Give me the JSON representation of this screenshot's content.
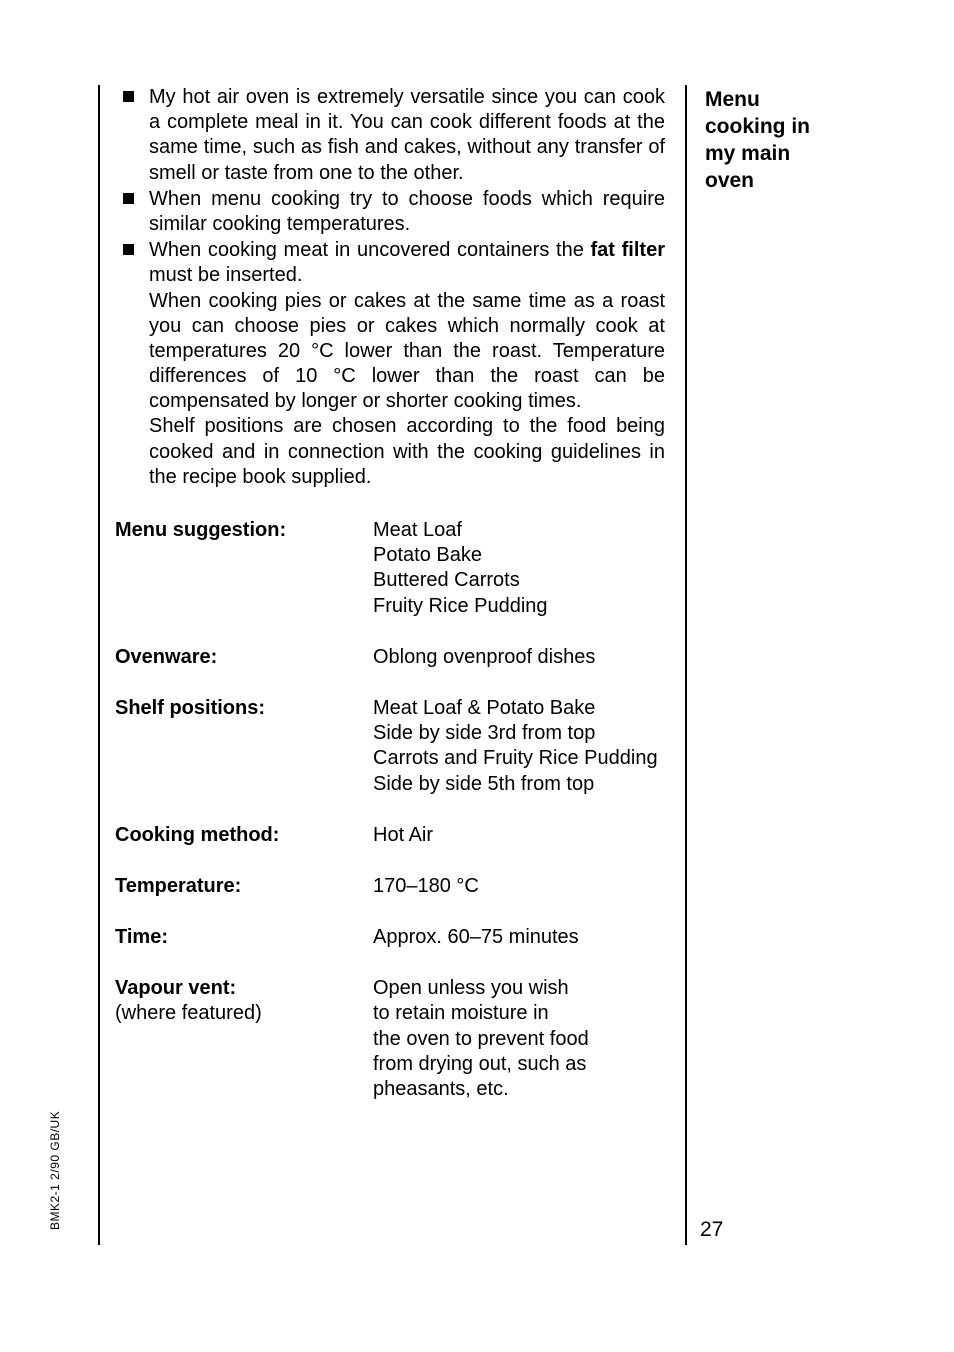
{
  "side_heading": "Menu cooking in my main oven",
  "bullets": [
    "My hot air oven is extremely versatile since you can cook a complete meal in it. You can cook different foods at the same time, such as fish and cakes, without any transfer of smell or taste from one to the other.",
    "When menu cooking try to choose foods which require similar cooking temperatures."
  ],
  "bullet3_pre": "When cooking meat in uncovered containers the ",
  "bullet3_bold": "fat filter",
  "bullet3_post": " must be inserted.",
  "bullet3_cont1": "When cooking pies or cakes at the same time as a roast you can choose pies or cakes which normally cook at temperatures 20 °C lower than the roast. Temperature differences of 10 °C lower than the roast can be compensated by longer or shorter cooking times.",
  "bullet3_cont2": "Shelf positions are chosen according to the food being cooked and in connection with the cooking guidelines in the recipe book supplied.",
  "rows": {
    "menu_suggestion": {
      "label": "Menu suggestion:",
      "lines": [
        "Meat Loaf",
        "Potato Bake",
        "Buttered Carrots",
        "Fruity Rice Pudding"
      ]
    },
    "ovenware": {
      "label": "Ovenware:",
      "lines": [
        "Oblong ovenproof dishes"
      ]
    },
    "shelf_positions": {
      "label": "Shelf positions:",
      "lines": [
        "Meat Loaf & Potato Bake",
        "Side by side 3rd from top",
        "Carrots and Fruity Rice Pudding",
        "Side by side 5th from top"
      ]
    },
    "cooking_method": {
      "label": "Cooking method:",
      "lines": [
        "Hot Air"
      ]
    },
    "temperature": {
      "label": "Temperature:",
      "lines": [
        "170–180 °C"
      ]
    },
    "time": {
      "label": "Time:",
      "lines": [
        "Approx. 60–75 minutes"
      ]
    },
    "vapour_vent": {
      "label": "Vapour vent:",
      "sublabel": "(where featured)",
      "lines": [
        "Open unless you wish",
        "to retain moisture in",
        "the oven to prevent food",
        "from drying out, such as",
        "pheasants, etc."
      ]
    }
  },
  "page_number": "27",
  "side_code": "BMK2-1 2/90   GB/UK"
}
